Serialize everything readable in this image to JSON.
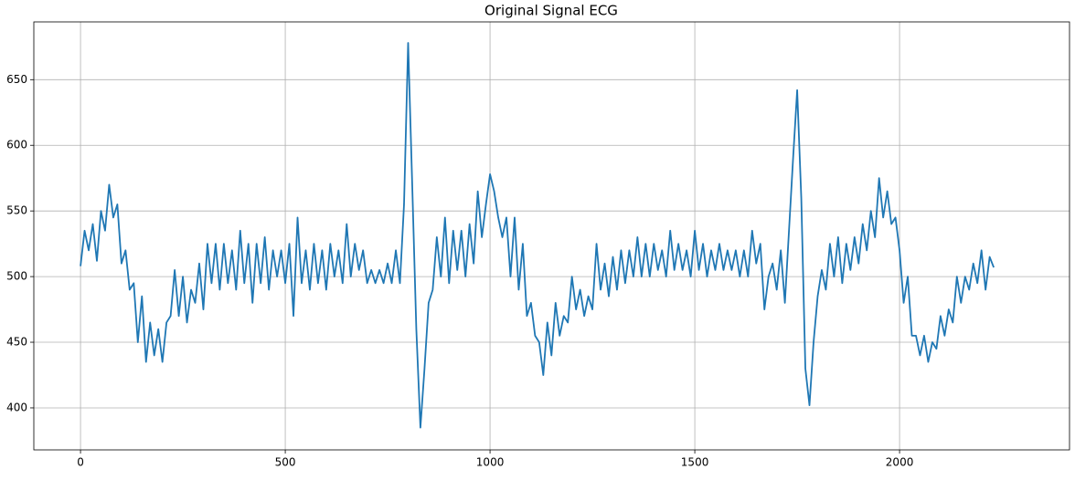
{
  "chart_data": {
    "type": "line",
    "title": "Original Signal ECG",
    "x": [
      0,
      10,
      20,
      30,
      40,
      50,
      60,
      70,
      80,
      90,
      100,
      110,
      120,
      130,
      140,
      150,
      160,
      170,
      180,
      190,
      200,
      210,
      220,
      230,
      240,
      250,
      260,
      270,
      280,
      290,
      300,
      310,
      320,
      330,
      340,
      350,
      360,
      370,
      380,
      390,
      400,
      410,
      420,
      430,
      440,
      450,
      460,
      470,
      480,
      490,
      500,
      510,
      520,
      530,
      540,
      550,
      560,
      570,
      580,
      590,
      600,
      610,
      620,
      630,
      640,
      650,
      660,
      670,
      680,
      690,
      700,
      710,
      720,
      730,
      740,
      750,
      760,
      770,
      780,
      790,
      800,
      810,
      820,
      830,
      840,
      850,
      860,
      870,
      880,
      890,
      900,
      910,
      920,
      930,
      940,
      950,
      960,
      970,
      980,
      990,
      1000,
      1010,
      1020,
      1030,
      1040,
      1050,
      1060,
      1070,
      1080,
      1090,
      1100,
      1110,
      1120,
      1130,
      1140,
      1150,
      1160,
      1170,
      1180,
      1190,
      1200,
      1210,
      1220,
      1230,
      1240,
      1250,
      1260,
      1270,
      1280,
      1290,
      1300,
      1310,
      1320,
      1330,
      1340,
      1350,
      1360,
      1370,
      1380,
      1390,
      1400,
      1410,
      1420,
      1430,
      1440,
      1450,
      1460,
      1470,
      1480,
      1490,
      1500,
      1510,
      1520,
      1530,
      1540,
      1550,
      1560,
      1570,
      1580,
      1590,
      1600,
      1610,
      1620,
      1630,
      1640,
      1650,
      1660,
      1670,
      1680,
      1690,
      1700,
      1710,
      1720,
      1730,
      1740,
      1750,
      1760,
      1770,
      1780,
      1790,
      1800,
      1810,
      1820,
      1830,
      1840,
      1850,
      1860,
      1870,
      1880,
      1890,
      1900,
      1910,
      1920,
      1930,
      1940,
      1950,
      1960,
      1970,
      1980,
      1990,
      2000,
      2010,
      2020,
      2030,
      2040,
      2050,
      2060,
      2070,
      2080,
      2090,
      2100,
      2110,
      2120,
      2130,
      2140,
      2150,
      2160,
      2170,
      2180,
      2190,
      2200,
      2210,
      2220,
      2230
    ],
    "series": [
      {
        "name": "ECG",
        "color": "#1f77b4",
        "values": [
          508,
          535,
          520,
          540,
          512,
          550,
          535,
          570,
          545,
          555,
          510,
          520,
          490,
          495,
          450,
          485,
          435,
          465,
          440,
          460,
          435,
          465,
          470,
          505,
          470,
          500,
          465,
          490,
          480,
          510,
          475,
          525,
          495,
          525,
          490,
          525,
          495,
          520,
          490,
          535,
          495,
          525,
          480,
          525,
          495,
          530,
          490,
          520,
          500,
          520,
          495,
          525,
          470,
          545,
          495,
          520,
          490,
          525,
          495,
          520,
          490,
          525,
          500,
          520,
          495,
          540,
          500,
          525,
          505,
          520,
          495,
          505,
          495,
          505,
          495,
          510,
          495,
          520,
          495,
          555,
          678,
          570,
          460,
          385,
          430,
          480,
          490,
          530,
          500,
          545,
          495,
          535,
          505,
          535,
          500,
          540,
          510,
          565,
          530,
          555,
          578,
          565,
          545,
          530,
          545,
          500,
          545,
          490,
          525,
          470,
          480,
          455,
          450,
          425,
          465,
          440,
          480,
          455,
          470,
          465,
          500,
          475,
          490,
          470,
          485,
          475,
          525,
          490,
          510,
          485,
          515,
          490,
          520,
          495,
          520,
          500,
          530,
          500,
          525,
          500,
          525,
          505,
          520,
          500,
          535,
          505,
          525,
          505,
          520,
          500,
          535,
          505,
          525,
          500,
          520,
          505,
          525,
          505,
          520,
          505,
          520,
          500,
          520,
          500,
          535,
          510,
          525,
          475,
          500,
          510,
          490,
          520,
          480,
          535,
          590,
          642,
          560,
          430,
          402,
          450,
          485,
          505,
          490,
          525,
          500,
          530,
          495,
          525,
          505,
          530,
          510,
          540,
          520,
          550,
          530,
          575,
          545,
          565,
          540,
          545,
          520,
          480,
          500,
          455,
          455,
          440,
          455,
          435,
          450,
          445,
          470,
          455,
          475,
          465,
          500,
          480,
          500,
          490,
          510,
          495,
          520,
          490,
          515,
          507
        ]
      }
    ],
    "xlim": [
      -114,
      2415
    ],
    "ylim": [
      368,
      694
    ],
    "xticks": [
      0,
      500,
      1000,
      1500,
      2000
    ],
    "yticks": [
      400,
      450,
      500,
      550,
      600,
      650
    ],
    "grid": true
  }
}
